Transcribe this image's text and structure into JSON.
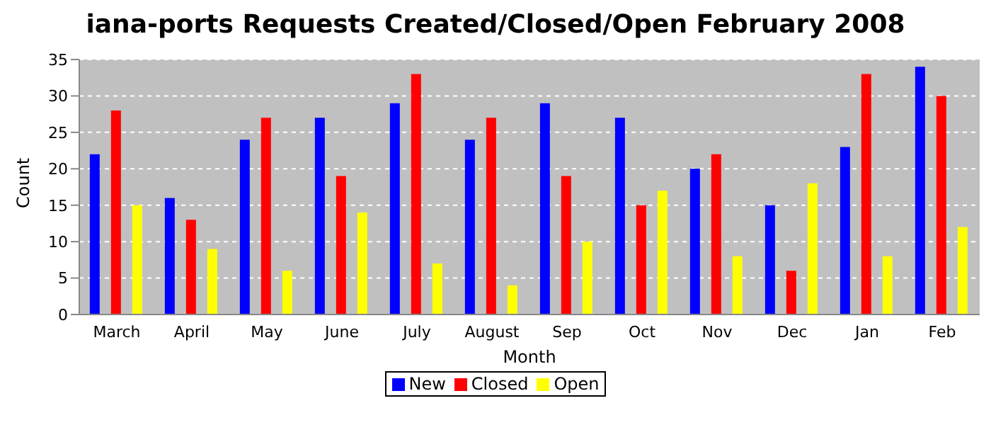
{
  "chart_data": {
    "type": "bar",
    "title": "iana-ports Requests Created/Closed/Open February 2008",
    "xlabel": "Month",
    "ylabel": "Count",
    "categories": [
      "March",
      "April",
      "May",
      "June",
      "July",
      "August",
      "Sep",
      "Oct",
      "Nov",
      "Dec",
      "Jan",
      "Feb"
    ],
    "series": [
      {
        "name": "New",
        "color": "#0000ff",
        "values": [
          22,
          16,
          24,
          27,
          29,
          24,
          29,
          27,
          20,
          15,
          23,
          34
        ]
      },
      {
        "name": "Closed",
        "color": "#ff0000",
        "values": [
          28,
          13,
          27,
          19,
          33,
          27,
          19,
          15,
          22,
          6,
          33,
          30
        ]
      },
      {
        "name": "Open",
        "color": "#ffff00",
        "values": [
          15,
          9,
          6,
          14,
          7,
          4,
          10,
          17,
          8,
          18,
          8,
          12
        ]
      }
    ],
    "ylim": [
      0,
      35
    ],
    "yticks": [
      0,
      5,
      10,
      15,
      20,
      25,
      30,
      35
    ],
    "grid": "y",
    "legend": "bottom"
  }
}
